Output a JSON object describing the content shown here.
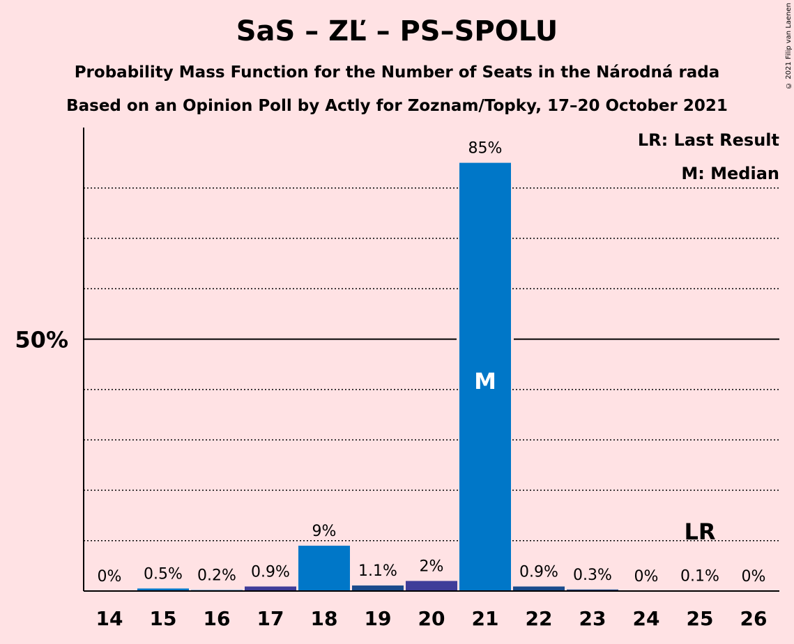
{
  "title": "SaS – ZĽ – PS–SPOLU",
  "subtitle1": "Probability Mass Function for the Number of Seats in the Národná rada",
  "subtitle2": "Based on an Opinion Poll by Actly for Zoznam/Topky, 17–20 October 2021",
  "copyright": "© 2021 Filip van Laenen",
  "legend": {
    "last_result": "LR: Last Result",
    "median": "M: Median"
  },
  "colors": {
    "background": "#FFE2E4",
    "bar_primary": "#0077C8",
    "bar_secondary": "#3F3D99",
    "bar_dark": "#1A4B8C"
  },
  "chart_data": {
    "type": "bar",
    "categories": [
      "14",
      "15",
      "16",
      "17",
      "18",
      "19",
      "20",
      "21",
      "22",
      "23",
      "24",
      "25",
      "26"
    ],
    "values": [
      0,
      0.5,
      0.2,
      0.9,
      9,
      1.1,
      2,
      85,
      0.9,
      0.3,
      0,
      0.1,
      0
    ],
    "value_labels": [
      "0%",
      "0.5%",
      "0.2%",
      "0.9%",
      "9%",
      "1.1%",
      "2%",
      "85%",
      "0.9%",
      "0.3%",
      "0%",
      "0.1%",
      "0%"
    ],
    "bar_colors": [
      "#0077C8",
      "#0077C8",
      "#0077C8",
      "#3F3D99",
      "#0077C8",
      "#1A4B8C",
      "#3F3D99",
      "#0077C8",
      "#1A4B8C",
      "#1A4B8C",
      "#0077C8",
      "#0077C8",
      "#0077C8"
    ],
    "ylim": [
      0,
      92
    ],
    "y_tick_label": "50%",
    "y_tick_value": 50,
    "grid_values": [
      10,
      20,
      30,
      40,
      60,
      70,
      80
    ],
    "median_category": "21",
    "median_mark": "M",
    "last_result_category": "25",
    "last_result_mark": "LR",
    "grid": true,
    "legend_position": "top-right"
  }
}
